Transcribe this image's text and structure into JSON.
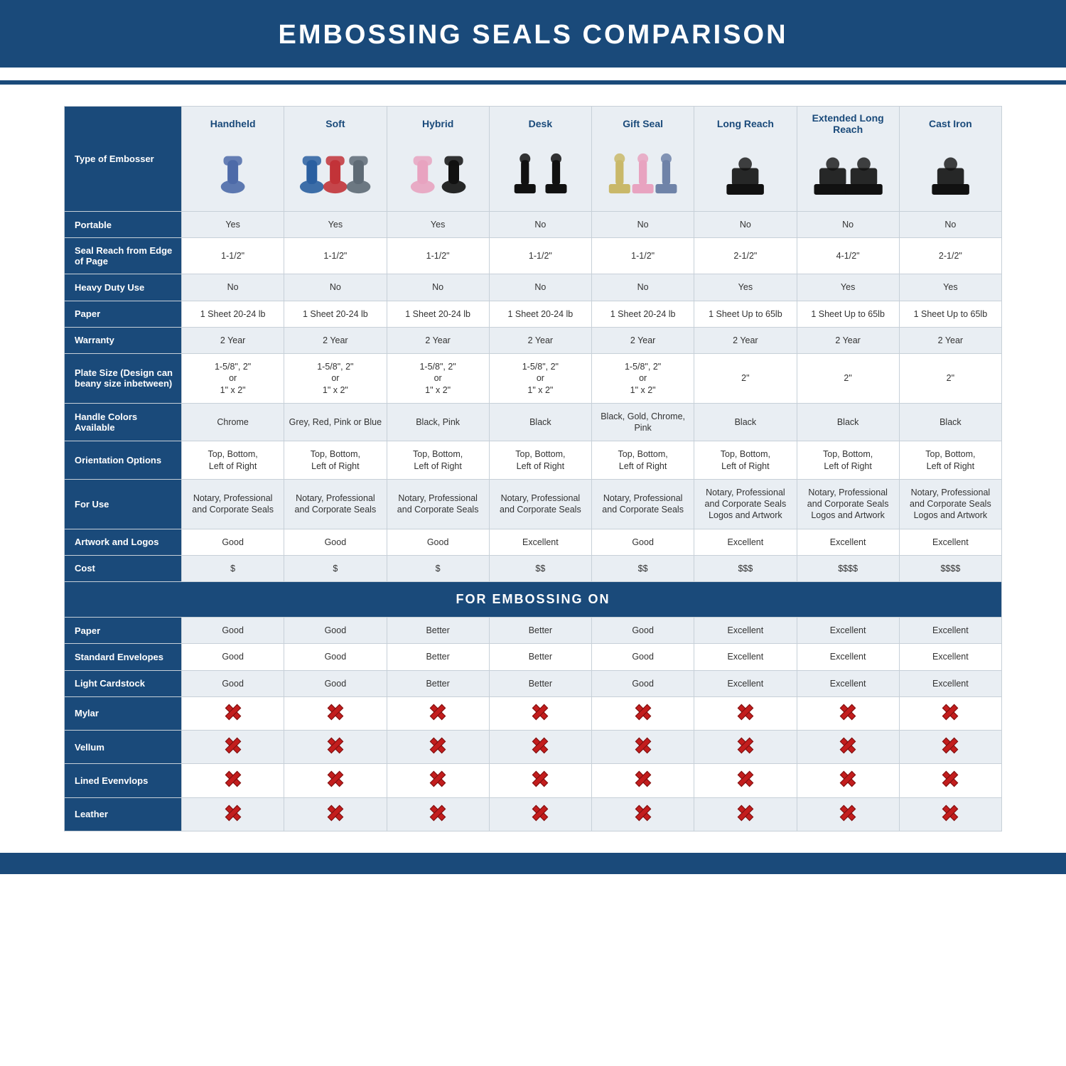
{
  "title": "EMBOSSING SEALS COMPARISON",
  "colors": {
    "brand": "#1a4a7a",
    "alt_row": "#e9eef3",
    "border": "#c7d0d8",
    "text": "#333333",
    "x_red": "#c31d1d"
  },
  "header_row_label": "Type of Embosser",
  "columns": [
    {
      "label": "Handheld",
      "icon_colors": [
        "#4d6aa8"
      ]
    },
    {
      "label": "Soft",
      "icon_colors": [
        "#2a5fa0",
        "#c23338",
        "#5e6a75"
      ]
    },
    {
      "label": "Hybrid",
      "icon_colors": [
        "#e8a3c0",
        "#111111"
      ]
    },
    {
      "label": "Desk",
      "icon_colors": [
        "#111111",
        "#111111"
      ]
    },
    {
      "label": "Gift Seal",
      "icon_colors": [
        "#c9b869",
        "#e8a3c0",
        "#6f83a8"
      ]
    },
    {
      "label": "Long Reach",
      "icon_colors": [
        "#111111"
      ]
    },
    {
      "label": "Extended Long Reach",
      "icon_colors": [
        "#111111",
        "#111111"
      ]
    },
    {
      "label": "Cast Iron",
      "icon_colors": [
        "#111111"
      ]
    }
  ],
  "rows_top": [
    {
      "label": "Portable",
      "alt": true,
      "cells": [
        "Yes",
        "Yes",
        "Yes",
        "No",
        "No",
        "No",
        "No",
        "No"
      ]
    },
    {
      "label": "Seal Reach from Edge of Page",
      "alt": false,
      "cells": [
        "1-1/2\"",
        "1-1/2\"",
        "1-1/2\"",
        "1-1/2\"",
        "1-1/2\"",
        "2-1/2\"",
        "4-1/2\"",
        "2-1/2\""
      ]
    },
    {
      "label": "Heavy Duty Use",
      "alt": true,
      "cells": [
        "No",
        "No",
        "No",
        "No",
        "No",
        "Yes",
        "Yes",
        "Yes"
      ]
    },
    {
      "label": "Paper",
      "alt": false,
      "cells": [
        "1 Sheet 20-24 lb",
        "1 Sheet 20-24 lb",
        "1 Sheet 20-24 lb",
        "1 Sheet 20-24 lb",
        "1 Sheet 20-24 lb",
        "1 Sheet Up to 65lb",
        "1 Sheet Up to 65lb",
        "1 Sheet Up to 65lb"
      ]
    },
    {
      "label": "Warranty",
      "alt": true,
      "cells": [
        "2 Year",
        "2 Year",
        "2 Year",
        "2 Year",
        "2 Year",
        "2 Year",
        "2 Year",
        "2 Year"
      ]
    },
    {
      "label": "Plate Size (Design can beany size inbetween)",
      "alt": false,
      "cells": [
        "1-5/8\", 2\"\nor\n1\" x 2\"",
        "1-5/8\", 2\"\nor\n1\" x 2\"",
        "1-5/8\", 2\"\nor\n1\" x 2\"",
        "1-5/8\", 2\"\nor\n1\" x 2\"",
        "1-5/8\", 2\"\nor\n1\" x 2\"",
        "2\"",
        "2\"",
        "2\""
      ]
    },
    {
      "label": "Handle Colors Available",
      "alt": true,
      "cells": [
        "Chrome",
        "Grey, Red, Pink or Blue",
        "Black, Pink",
        "Black",
        "Black, Gold, Chrome, Pink",
        "Black",
        "Black",
        "Black"
      ]
    },
    {
      "label": "Orientation Options",
      "alt": false,
      "cells": [
        "Top, Bottom,\nLeft of Right",
        "Top, Bottom,\nLeft of Right",
        "Top, Bottom,\nLeft of Right",
        "Top, Bottom,\nLeft of Right",
        "Top, Bottom,\nLeft of Right",
        "Top, Bottom,\nLeft of Right",
        "Top, Bottom,\nLeft of Right",
        "Top, Bottom,\nLeft of Right"
      ]
    },
    {
      "label": "For Use",
      "alt": true,
      "cells": [
        "Notary, Professional and Corporate Seals",
        "Notary, Professional and Corporate Seals",
        "Notary, Professional and Corporate Seals",
        "Notary, Professional and Corporate Seals",
        "Notary, Professional and Corporate Seals",
        "Notary, Professional and Corporate Seals Logos and Artwork",
        "Notary, Professional and Corporate Seals Logos and Artwork",
        "Notary, Professional and Corporate Seals Logos and Artwork"
      ]
    },
    {
      "label": "Artwork and Logos",
      "alt": false,
      "cells": [
        "Good",
        "Good",
        "Good",
        "Excellent",
        "Good",
        "Excellent",
        "Excellent",
        "Excellent"
      ]
    },
    {
      "label": "Cost",
      "alt": true,
      "cells": [
        "$",
        "$",
        "$",
        "$$",
        "$$",
        "$$$",
        "$$$$",
        "$$$$"
      ]
    }
  ],
  "section_heading": "FOR EMBOSSING ON",
  "rows_bottom": [
    {
      "label": "Paper",
      "alt": true,
      "cells": [
        "Good",
        "Good",
        "Better",
        "Better",
        "Good",
        "Excellent",
        "Excellent",
        "Excellent"
      ]
    },
    {
      "label": "Standard Envelopes",
      "alt": false,
      "cells": [
        "Good",
        "Good",
        "Better",
        "Better",
        "Good",
        "Excellent",
        "Excellent",
        "Excellent"
      ]
    },
    {
      "label": "Light Cardstock",
      "alt": true,
      "cells": [
        "Good",
        "Good",
        "Better",
        "Better",
        "Good",
        "Excellent",
        "Excellent",
        "Excellent"
      ]
    },
    {
      "label": "Mylar",
      "alt": false,
      "cells": [
        "X",
        "X",
        "X",
        "X",
        "X",
        "X",
        "X",
        "X"
      ]
    },
    {
      "label": "Vellum",
      "alt": true,
      "cells": [
        "X",
        "X",
        "X",
        "X",
        "X",
        "X",
        "X",
        "X"
      ]
    },
    {
      "label": "Lined Evenvlops",
      "alt": false,
      "cells": [
        "X",
        "X",
        "X",
        "X",
        "X",
        "X",
        "X",
        "X"
      ]
    },
    {
      "label": "Leather",
      "alt": true,
      "cells": [
        "X",
        "X",
        "X",
        "X",
        "X",
        "X",
        "X",
        "X"
      ]
    }
  ]
}
